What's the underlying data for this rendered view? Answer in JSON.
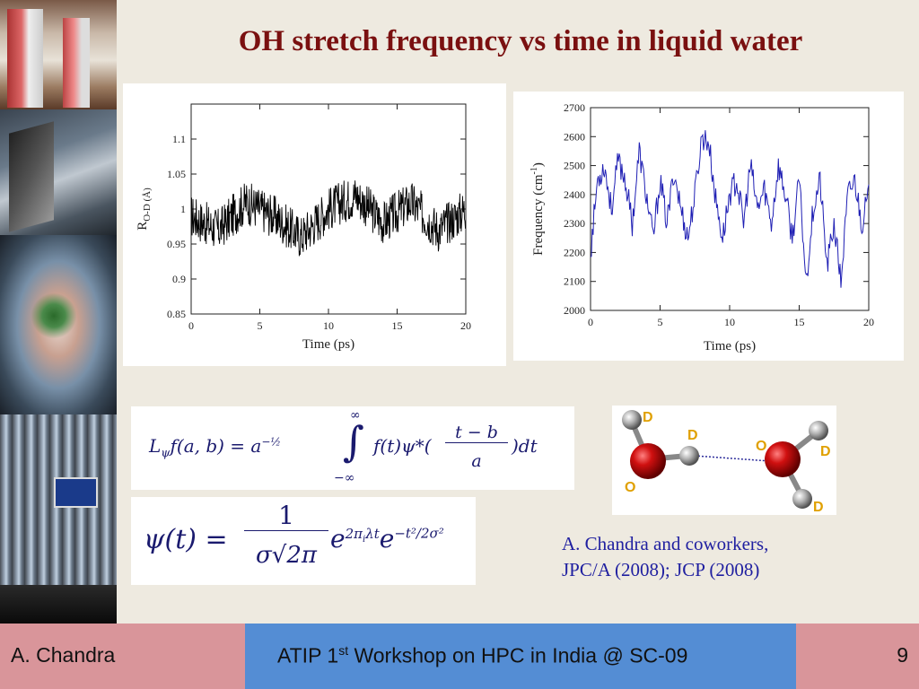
{
  "slide": {
    "title": "OH stretch frequency vs time in liquid water",
    "citation_line1": "A.  Chandra and coworkers,",
    "citation_line2": "JPC/A (2008); JCP (2008)"
  },
  "chart_data": [
    {
      "type": "line",
      "xlabel": "Time (ps)",
      "ylabel_main": "R",
      "ylabel_sub": "O-D (Å)",
      "xlim": [
        0,
        20
      ],
      "ylim": [
        0.85,
        1.15
      ],
      "xticks": [
        "0",
        "5",
        "10",
        "15",
        "20"
      ],
      "yticks": [
        "0.85",
        "0.9",
        "0.95",
        "1",
        "1.05",
        "1.1"
      ],
      "series_color": "#000000",
      "mean": 0.99,
      "x": [
        0,
        2,
        4,
        6,
        8,
        10,
        12,
        14,
        16,
        18,
        20
      ],
      "y": [
        0.99,
        0.97,
        1.01,
        0.99,
        0.96,
        1.0,
        1.02,
        0.98,
        1.01,
        0.97,
        1.0
      ]
    },
    {
      "type": "line",
      "xlabel": "Time (ps)",
      "ylabel_main": "Frequency (cm",
      "ylabel_sup": "-1",
      "ylabel_end": ")",
      "xlim": [
        0,
        20
      ],
      "ylim": [
        2000,
        2700
      ],
      "xticks": [
        "0",
        "5",
        "10",
        "15",
        "20"
      ],
      "yticks": [
        "2000",
        "2100",
        "2200",
        "2300",
        "2400",
        "2500",
        "2600",
        "2700"
      ],
      "series_color": "#1f1fb4",
      "x": [
        0,
        0.5,
        1,
        1.5,
        2,
        2.5,
        3,
        3.5,
        4,
        4.5,
        5,
        5.5,
        6,
        6.5,
        7,
        7.5,
        8,
        8.5,
        9,
        9.5,
        10,
        10.5,
        11,
        11.5,
        12,
        12.5,
        13,
        13.5,
        14,
        14.5,
        15,
        15.5,
        16,
        16.5,
        17,
        17.5,
        18,
        18.5,
        19,
        19.5,
        20
      ],
      "y": [
        2200,
        2450,
        2500,
        2350,
        2520,
        2450,
        2300,
        2550,
        2400,
        2250,
        2450,
        2300,
        2480,
        2350,
        2250,
        2400,
        2600,
        2580,
        2380,
        2250,
        2400,
        2450,
        2300,
        2500,
        2350,
        2420,
        2300,
        2500,
        2400,
        2250,
        2450,
        2100,
        2350,
        2450,
        2150,
        2300,
        2100,
        2400,
        2450,
        2300,
        2400
      ]
    }
  ],
  "molecule": {
    "labels": [
      "D",
      "D",
      "O",
      "O",
      "D",
      "D"
    ]
  },
  "footer": {
    "author": "A. Chandra",
    "event_pre": "ATIP 1",
    "event_sup": "st",
    "event_post": " Workshop on HPC in India @ SC-09",
    "page_number": "9"
  }
}
